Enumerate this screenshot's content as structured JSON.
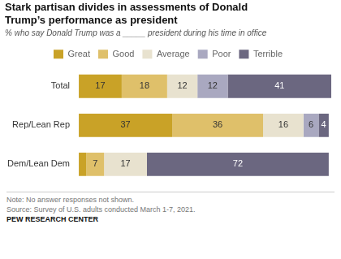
{
  "chart_data": {
    "type": "bar",
    "orientation": "horizontal",
    "stacked": true,
    "title": "Stark partisan divides in assessments of Donald\nTrump’s performance as president",
    "subtitle": "% who say Donald Trump was a _____ president during his time in office",
    "annotations": [
      "Note: No answer responses not shown.",
      "Source: Survey of U.S. adults conducted March 1-7, 2021.",
      "PEW RESEARCH CENTER"
    ],
    "categories": [
      "Total",
      "Rep/Lean Rep",
      "Dem/Lean Dem"
    ],
    "series": [
      {
        "name": "Great",
        "color": "#c9a227",
        "values": [
          17,
          37,
          3
        ],
        "value_labels": [
          "17",
          "37",
          null
        ]
      },
      {
        "name": "Good",
        "color": "#dfc06a",
        "values": [
          18,
          36,
          7
        ],
        "value_labels": [
          "18",
          "36",
          "7"
        ]
      },
      {
        "name": "Average",
        "color": "#e8e2cf",
        "values": [
          12,
          16,
          17
        ],
        "value_labels": [
          "12",
          "16",
          "17"
        ]
      },
      {
        "name": "Poor",
        "color": "#a9a8c0",
        "values": [
          12,
          6,
          0
        ],
        "value_labels": [
          "12",
          "6",
          null
        ]
      },
      {
        "name": "Terrible",
        "color": "#6b6780",
        "values": [
          41,
          4,
          72
        ],
        "value_labels": [
          "41",
          "4",
          "72"
        ]
      }
    ],
    "xlim": [
      0,
      100
    ],
    "grid": false,
    "legend": "top",
    "tick_labels": "y",
    "data_labels": true
  }
}
